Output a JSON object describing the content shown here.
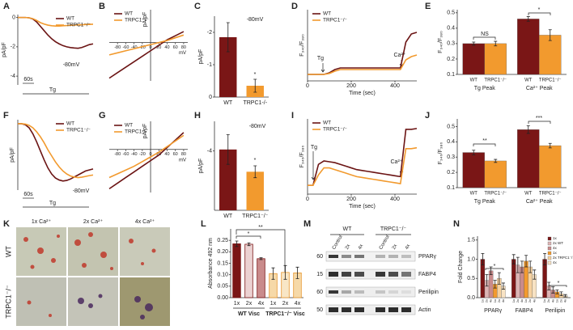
{
  "chart_data": [
    {
      "panel": "A",
      "type": "line",
      "ylabel": "pA/pF",
      "x": [
        0,
        5,
        10,
        15,
        20,
        25,
        30,
        35,
        40,
        45,
        50,
        55,
        60,
        65,
        70,
        75,
        80,
        85,
        90,
        95,
        100
      ],
      "xlim": [
        0,
        100
      ],
      "ylim": [
        -4.6,
        0.2
      ],
      "yticks": [
        -4,
        -2,
        0
      ],
      "legend": "upper right",
      "series": [
        {
          "name": "WT",
          "color": "#6b1414",
          "values": [
            0,
            0,
            0,
            -0.02,
            -0.1,
            -0.3,
            -0.6,
            -0.9,
            -1.2,
            -1.45,
            -1.65,
            -1.8,
            -1.92,
            -2.0,
            -2.05,
            -2.08,
            -2.1,
            -2.05,
            -1.95,
            -1.85,
            -1.8
          ]
        },
        {
          "name": "TRPC1⁻/⁻",
          "color": "#f29a2e",
          "values": [
            0,
            0,
            0,
            -0.02,
            -0.08,
            -0.2,
            -0.35,
            -0.45,
            -0.52,
            -0.56,
            -0.58,
            -0.58,
            -0.56,
            -0.55,
            -0.53,
            -0.52,
            -0.5,
            -0.5,
            -0.48,
            -0.47,
            -0.46
          ]
        }
      ],
      "annotations": [
        "-80mV",
        "60s",
        "Tg"
      ]
    },
    {
      "panel": "B",
      "type": "line",
      "axes_at_zero": true,
      "ylabel": "pA/pF",
      "xlabel": "mV",
      "x": [
        -100,
        -80,
        -60,
        -40,
        -20,
        0,
        20,
        40,
        60,
        80
      ],
      "xlim": [
        -100,
        90
      ],
      "ylim": [
        -2.8,
        2.4
      ],
      "xticks": [
        -80,
        -60,
        -40,
        -20,
        0,
        20,
        40,
        60,
        80
      ],
      "legend": "upper left",
      "series": [
        {
          "name": "WT",
          "color": "#6b1414",
          "values": [
            -2.6,
            -2.2,
            -1.8,
            -1.4,
            -1.0,
            -0.6,
            -0.2,
            0.2,
            0.5,
            0.8
          ]
        },
        {
          "name": "TRPC1⁻/⁻",
          "color": "#f29a2e",
          "values": [
            -0.9,
            -0.75,
            -0.6,
            -0.45,
            -0.3,
            -0.15,
            0,
            0.15,
            0.35,
            0.55
          ]
        }
      ]
    },
    {
      "panel": "C",
      "type": "bar",
      "ylabel": "pA/pF",
      "categories": [
        "WT",
        "TRPC1-/-"
      ],
      "values": [
        -1.85,
        -0.35
      ],
      "errors": [
        0.45,
        0.2
      ],
      "colors": [
        "#7a1616",
        "#f29a2e"
      ],
      "ylim": [
        0,
        -2.5
      ],
      "yticks": [
        -2,
        -1,
        0
      ],
      "annotations": [
        "-80mV",
        "*"
      ]
    },
    {
      "panel": "D",
      "type": "line",
      "ylabel": "F₃₄₀/F₃₈₀",
      "xlabel": "Time (sec)",
      "x": [
        0,
        25,
        50,
        75,
        100,
        125,
        150,
        175,
        200,
        225,
        250,
        275,
        300,
        325,
        350,
        375,
        400,
        425,
        450,
        475,
        500
      ],
      "xlim": [
        0,
        500
      ],
      "xticks": [
        0,
        200,
        400
      ],
      "ylim": [
        0.28,
        0.5
      ],
      "legend": "upper left",
      "series": [
        {
          "name": "WT",
          "color": "#6b1414",
          "values": [
            0.3,
            0.3,
            0.3,
            0.3,
            0.305,
            0.315,
            0.32,
            0.32,
            0.32,
            0.32,
            0.32,
            0.32,
            0.32,
            0.32,
            0.32,
            0.32,
            0.32,
            0.32,
            0.4,
            0.425,
            0.43
          ]
        },
        {
          "name": "TRPC1⁻/⁻",
          "color": "#f29a2e",
          "values": [
            0.3,
            0.3,
            0.3,
            0.3,
            0.303,
            0.31,
            0.315,
            0.315,
            0.315,
            0.315,
            0.315,
            0.315,
            0.315,
            0.315,
            0.315,
            0.315,
            0.315,
            0.315,
            0.345,
            0.355,
            0.36
          ]
        }
      ],
      "annotations": [
        "Tg",
        "Ca²⁺"
      ]
    },
    {
      "panel": "E",
      "type": "grouped_bar",
      "ylabel": "F₃₄₀/F₃₈₀",
      "categories": [
        "Tg Peak",
        "Ca²⁺ Peak"
      ],
      "series_names_under_bars": true,
      "ylim": [
        0.1,
        0.52
      ],
      "yticks": [
        0.1,
        0.2,
        0.3,
        0.4,
        0.5
      ],
      "series": [
        {
          "name": "WT",
          "color": "#7a1616",
          "values": [
            0.3,
            0.46
          ],
          "errors": [
            0.01,
            0.015
          ]
        },
        {
          "name": "TRPC1⁻/⁻",
          "color": "#f29a2e",
          "values": [
            0.3,
            0.355
          ],
          "errors": [
            0.015,
            0.035
          ]
        }
      ],
      "annotations": [
        "NS",
        "*"
      ]
    },
    {
      "panel": "F",
      "type": "line",
      "ylabel": "pA/pF",
      "x": [
        0,
        5,
        10,
        15,
        20,
        25,
        30,
        35,
        40,
        45,
        50,
        55,
        60,
        65,
        70,
        75,
        80,
        85,
        90,
        95,
        100
      ],
      "xlim": [
        0,
        100
      ],
      "ylim": [
        -3.3,
        0.2
      ],
      "legend": "upper right",
      "series": [
        {
          "name": "WT",
          "color": "#6b1414",
          "values": [
            0,
            0,
            -0.05,
            -0.2,
            -0.5,
            -0.9,
            -1.35,
            -1.8,
            -2.2,
            -2.5,
            -2.7,
            -2.8,
            -2.85,
            -2.82,
            -2.75,
            -2.65,
            -2.55,
            -2.45,
            -2.35,
            -2.3,
            -2.25
          ]
        },
        {
          "name": "TRPC1⁻/⁻",
          "color": "#f29a2e",
          "values": [
            0,
            0,
            -0.02,
            -0.08,
            -0.2,
            -0.4,
            -0.65,
            -0.95,
            -1.3,
            -1.6,
            -1.9,
            -2.15,
            -2.35,
            -2.5,
            -2.6,
            -2.65,
            -2.68,
            -2.66,
            -2.62,
            -2.58,
            -2.55
          ]
        }
      ],
      "annotations": [
        "-80mV",
        "60s",
        "Tg"
      ]
    },
    {
      "panel": "G",
      "type": "line",
      "axes_at_zero": true,
      "ylabel": "pA/pF",
      "xlabel": "mV",
      "x": [
        -100,
        -80,
        -60,
        -40,
        -20,
        0,
        20,
        40,
        60,
        80
      ],
      "xlim": [
        -100,
        90
      ],
      "ylim": [
        -2.3,
        1.5
      ],
      "xticks": [
        -80,
        -60,
        -40,
        -20,
        0,
        20,
        40,
        60,
        80
      ],
      "legend": "upper left",
      "series": [
        {
          "name": "WT",
          "color": "#6b1414",
          "values": [
            -2.1,
            -1.8,
            -1.5,
            -1.2,
            -0.9,
            -0.6,
            -0.3,
            0.1,
            0.5,
            0.9
          ]
        },
        {
          "name": "TRPC1-/-",
          "color": "#f29a2e",
          "values": [
            -1.5,
            -1.3,
            -1.1,
            -0.9,
            -0.65,
            -0.4,
            -0.15,
            0.15,
            0.45,
            0.75
          ]
        }
      ]
    },
    {
      "panel": "H",
      "type": "bar",
      "ylabel": "pA/pF",
      "categories": [
        "WT",
        "TRPC1⁻/⁻"
      ],
      "values": [
        -4.1,
        -2.6
      ],
      "errors": [
        1.0,
        0.4
      ],
      "colors": [
        "#7a1616",
        "#f29a2e"
      ],
      "ylim": [
        0,
        -6
      ],
      "yticks": [
        -4
      ],
      "annotations": [
        "-80mV",
        "*"
      ]
    },
    {
      "panel": "I",
      "type": "line",
      "ylabel": "F₃₄₀/F₃₈₀",
      "xlabel": "Time (sec)",
      "x": [
        0,
        25,
        50,
        75,
        100,
        125,
        150,
        175,
        200,
        225,
        250,
        275,
        300,
        325,
        350,
        375,
        400,
        425,
        450,
        475,
        500
      ],
      "xlim": [
        0,
        500
      ],
      "xticks": [
        0,
        200,
        400
      ],
      "ylim": [
        0.15,
        0.58
      ],
      "legend": "upper left",
      "series": [
        {
          "name": "WT",
          "color": "#6b1414",
          "values": [
            0.2,
            0.2,
            0.32,
            0.34,
            0.335,
            0.33,
            0.32,
            0.31,
            0.3,
            0.29,
            0.285,
            0.28,
            0.275,
            0.27,
            0.265,
            0.26,
            0.255,
            0.25,
            0.52,
            0.52,
            0.525
          ]
        },
        {
          "name": "TRPC1⁻/⁻",
          "color": "#f29a2e",
          "values": [
            0.2,
            0.2,
            0.26,
            0.3,
            0.3,
            0.29,
            0.28,
            0.27,
            0.26,
            0.25,
            0.245,
            0.24,
            0.235,
            0.23,
            0.225,
            0.22,
            0.215,
            0.21,
            0.41,
            0.41,
            0.415
          ]
        }
      ],
      "annotations": [
        "Tg",
        "Ca²⁺"
      ]
    },
    {
      "panel": "J",
      "type": "grouped_bar",
      "ylabel": "F₃₄₀/F₃₈₀",
      "categories": [
        "Tg Peak",
        "Ca²⁺ Peak"
      ],
      "series_names_under_bars": true,
      "ylim": [
        0.1,
        0.55
      ],
      "yticks": [
        0.1,
        0.2,
        0.3,
        0.4,
        0.5
      ],
      "series": [
        {
          "name": "WT",
          "color": "#7a1616",
          "values": [
            0.33,
            0.48
          ],
          "errors": [
            0.015,
            0.025
          ]
        },
        {
          "name": "TRPC1⁻/⁻",
          "color": "#f29a2e",
          "values": [
            0.275,
            0.375
          ],
          "errors": [
            0.01,
            0.015
          ]
        }
      ],
      "annotations": [
        "**",
        "***"
      ]
    },
    {
      "panel": "L",
      "type": "bar",
      "ylabel": "Absorbance 492 nm",
      "categories": [
        "1x",
        "2x",
        "4x",
        "1x",
        "2x",
        "4x"
      ],
      "values": [
        0.235,
        0.233,
        0.17,
        0.105,
        0.11,
        0.108
      ],
      "errors": [
        0.012,
        0.006,
        0.004,
        0.025,
        0.03,
        0.025
      ],
      "colors": [
        "#7a1616",
        "#ecd2d2",
        "#c98b8b",
        "#f6d9a8",
        "#f8e6c6",
        "#f6d9a8"
      ],
      "edgecolors": [
        "#7a1616",
        "#7a1616",
        "#7a1616",
        "#e8962e",
        "#e8962e",
        "#e8962e"
      ],
      "group_labels": [
        "WT Visc",
        "TRPC1⁻/⁻ Visc"
      ],
      "ylim": [
        0,
        0.3
      ],
      "yticks": [
        {
          "value": 0,
          "label": "0.00"
        },
        {
          "value": 0.05,
          "label": "0.05"
        },
        {
          "value": 0.1,
          "label": "0.10"
        },
        {
          "value": 0.15,
          "label": "0.15"
        },
        {
          "value": 0.2,
          "label": "0.20"
        },
        {
          "value": 0.25,
          "label": "0.25"
        }
      ],
      "annotations": [
        "*",
        "**"
      ]
    },
    {
      "panel": "N",
      "type": "grouped_bar",
      "ylabel": "Fold Change",
      "categories": [
        "PPARγ",
        "FABP4",
        "Perilipin"
      ],
      "bar_labels": [
        "1x",
        "2x",
        "4x",
        "1x",
        "2x",
        "4x"
      ],
      "legend": "upper right",
      "ylim": [
        0,
        1.6
      ],
      "yticks": [
        {
          "value": 0,
          "label": "0.0"
        },
        {
          "value": 0.5,
          "label": "0.5"
        },
        {
          "value": 1,
          "label": "1.0"
        },
        {
          "value": 1.5,
          "label": "1.5"
        }
      ],
      "series": [
        {
          "name": "1x",
          "color": "#7a1616",
          "values": [
            1,
            1,
            1
          ],
          "errors": [
            0.15,
            0.12,
            0.15
          ]
        },
        {
          "name": "2x WT",
          "color": "#dcb4b4",
          "values": [
            0.45,
            0.85,
            0.3
          ],
          "errors": [
            0.15,
            0.2,
            0.1
          ]
        },
        {
          "name": "4x",
          "color": "#c98b8b",
          "values": [
            0.7,
            0.8,
            0.2
          ],
          "errors": [
            0.1,
            0.15,
            0.08
          ]
        },
        {
          "name": "1x",
          "color": "#f29a2e",
          "values": [
            0.35,
            0.95,
            0.15
          ],
          "errors": [
            0.1,
            0.15,
            0.05
          ]
        },
        {
          "name": "2x TRPC1⁻/⁻",
          "color": "#f6d2a0",
          "values": [
            0.5,
            0.8,
            0.1
          ],
          "errors": [
            0.15,
            0.15,
            0.05
          ]
        },
        {
          "name": "4x",
          "color": "#f8e3c4",
          "values": [
            0.3,
            0.6,
            0.05
          ],
          "errors": [
            0.08,
            0.12,
            0.03
          ]
        }
      ],
      "annotations": [
        "*",
        "*"
      ]
    }
  ],
  "panel_k": {
    "panel": "K",
    "columns": [
      "1x Ca²⁺",
      "2x Ca²⁺",
      "4x Ca²⁺"
    ],
    "rows": [
      "WT",
      "TRPC1⁻/⁻"
    ]
  },
  "panel_m": {
    "panel": "M",
    "genotypes": [
      "WT",
      "TRPC1⁻/⁻"
    ],
    "lanes": [
      "Control",
      "2x",
      "4x",
      "Control",
      "2x",
      "4x"
    ],
    "markers": [
      "60",
      "15",
      "60",
      "50"
    ],
    "proteins": [
      "PPARγ",
      "FABP4",
      "Perilipin",
      "Actin"
    ]
  }
}
